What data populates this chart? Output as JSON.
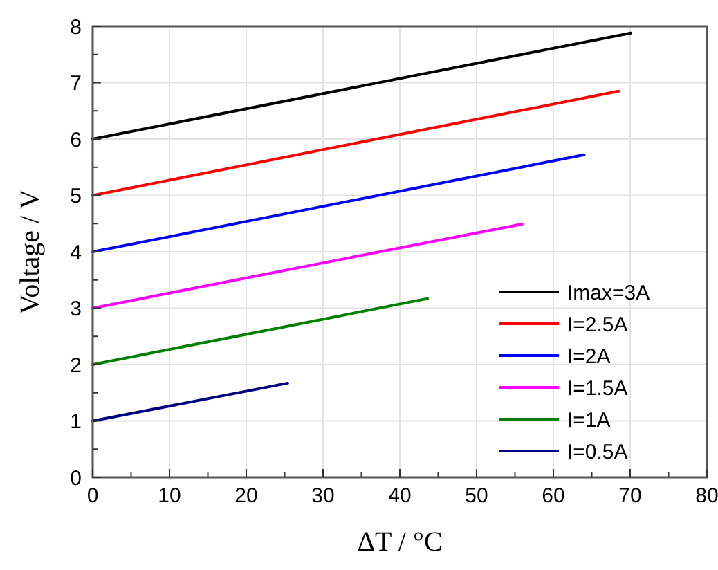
{
  "chart_data": {
    "type": "line",
    "xlabel": "ΔT / °C",
    "ylabel": "Voltage / V",
    "xlim": [
      0,
      80
    ],
    "ylim": [
      0,
      8
    ],
    "xticks": [
      0,
      {
        "value": 5,
        "label": null
      },
      10,
      {
        "value": 15,
        "label": null
      },
      20,
      {
        "value": 25,
        "label": null
      },
      30,
      {
        "value": 35,
        "label": null
      },
      40,
      {
        "value": 45,
        "label": null
      },
      50,
      {
        "value": 55,
        "label": null
      },
      60,
      {
        "value": 65,
        "label": null
      },
      70,
      {
        "value": 75,
        "label": null
      },
      80
    ],
    "yticks": [
      0,
      {
        "value": 0.5,
        "label": null
      },
      1,
      {
        "value": 1.5,
        "label": null
      },
      2,
      {
        "value": 2.5,
        "label": null
      },
      3,
      {
        "value": 3.5,
        "label": null
      },
      4,
      {
        "value": 4.5,
        "label": null
      },
      5,
      {
        "value": 5.5,
        "label": null
      },
      6,
      {
        "value": 6.5,
        "label": null
      },
      7,
      {
        "value": 7.5,
        "label": null
      },
      8
    ],
    "grid": true,
    "legend": "bottom right",
    "marker": "none",
    "line_style": "solid",
    "series": [
      {
        "name": "Imax=3A",
        "color": "#000000",
        "x": [
          0,
          35,
          70.1
        ],
        "values": [
          6,
          6.94,
          7.88
        ]
      },
      {
        "name": "I=2.5A",
        "color": "#ff0000",
        "x": [
          0,
          34,
          68.5
        ],
        "values": [
          5,
          5.92,
          6.85
        ]
      },
      {
        "name": "I=2A",
        "color": "#0000ff",
        "x": [
          0,
          32,
          64
        ],
        "values": [
          4,
          4.86,
          5.72
        ]
      },
      {
        "name": "I=1.5A",
        "color": "#ff00ff",
        "x": [
          0,
          28,
          55.9
        ],
        "values": [
          3,
          3.75,
          4.49
        ]
      },
      {
        "name": "I=1A",
        "color": "#008000",
        "x": [
          0,
          22,
          43.6
        ],
        "values": [
          2,
          2.59,
          3.17
        ]
      },
      {
        "name": "I=0.5A",
        "color": "#000080",
        "x": [
          0,
          25.4
        ],
        "values": [
          1,
          1.67
        ]
      }
    ]
  }
}
